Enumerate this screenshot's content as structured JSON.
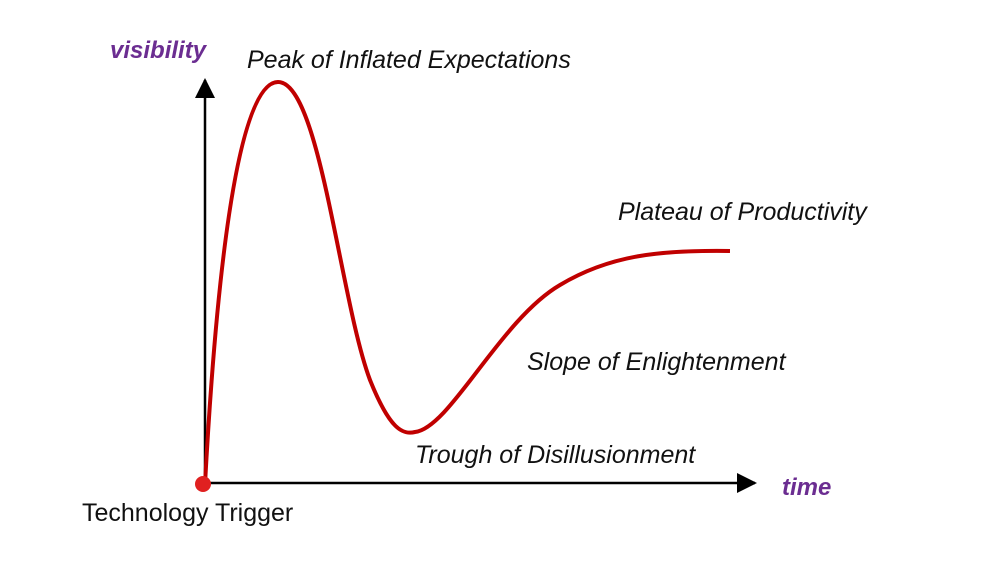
{
  "axes": {
    "y_label": "visibility",
    "x_label": "time"
  },
  "phases": [
    {
      "label": "Technology Trigger"
    },
    {
      "label": "Peak of Inflated Expectations"
    },
    {
      "label": "Trough of Disillusionment"
    },
    {
      "label": "Slope of Enlightenment"
    },
    {
      "label": "Plateau of Productivity"
    }
  ]
}
